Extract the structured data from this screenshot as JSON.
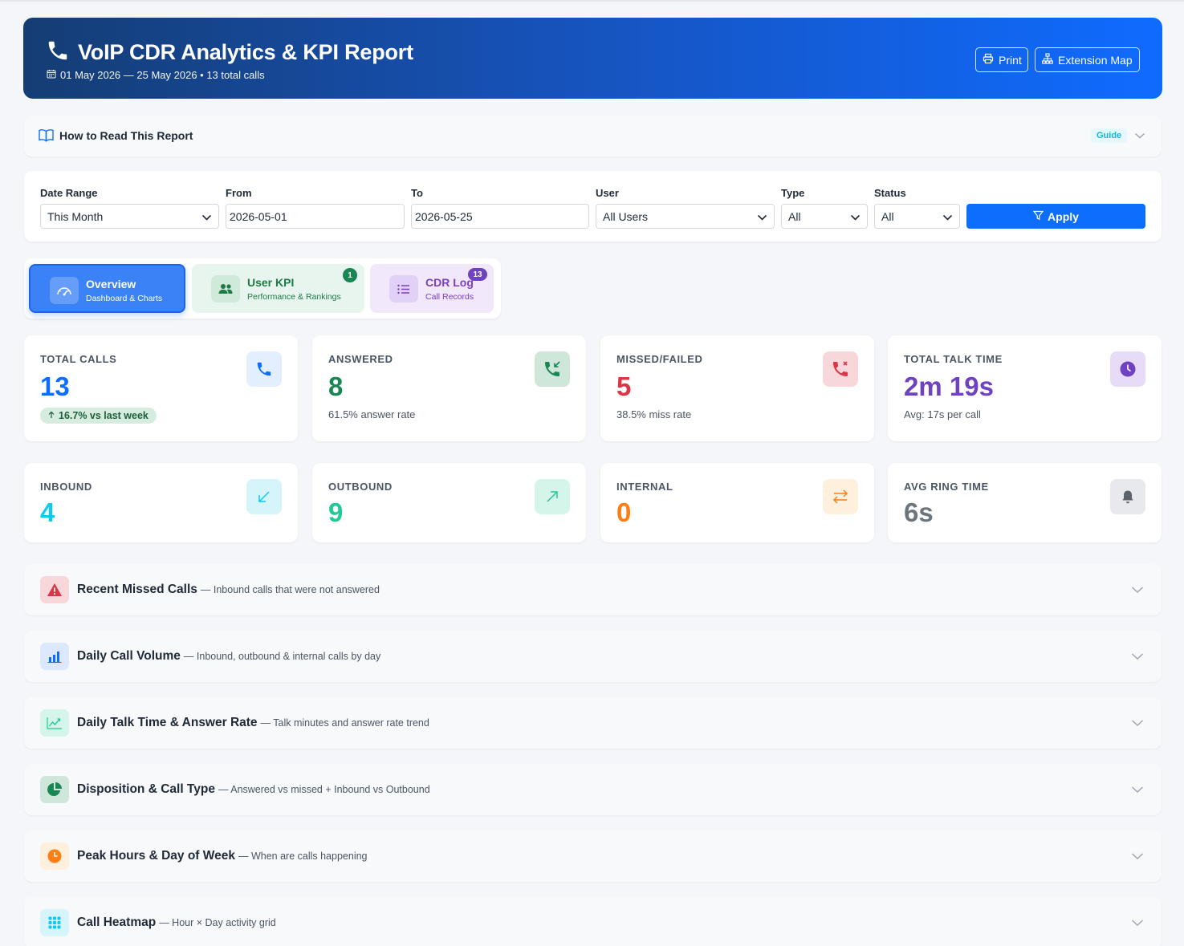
{
  "header": {
    "title": "VoIP CDR Analytics & KPI Report",
    "subtitle": "01 May 2026 — 25 May 2026 • 13 total calls",
    "print_label": "Print",
    "extension_map_label": "Extension Map"
  },
  "guide": {
    "label": "How to Read This Report",
    "badge": "Guide"
  },
  "filters": {
    "date_range": {
      "label": "Date Range",
      "value": "This Month"
    },
    "from": {
      "label": "From",
      "value": "2026-05-01"
    },
    "to": {
      "label": "To",
      "value": "2026-05-25"
    },
    "user": {
      "label": "User",
      "value": "All Users"
    },
    "type": {
      "label": "Type",
      "value": "All"
    },
    "status": {
      "label": "Status",
      "value": "All"
    },
    "apply_label": "Apply"
  },
  "tabs": [
    {
      "title": "Overview",
      "subtitle": "Dashboard & Charts"
    },
    {
      "title": "User KPI",
      "subtitle": "Performance & Rankings",
      "badge": "1"
    },
    {
      "title": "CDR Log",
      "subtitle": "Call Records",
      "badge": "13"
    }
  ],
  "kpis": [
    {
      "label": "TOTAL CALLS",
      "value": "13",
      "trend": "16.7% vs last week",
      "color": "#0d6efd",
      "icon": "phone-icon"
    },
    {
      "label": "ANSWERED",
      "value": "8",
      "sub": "61.5% answer rate",
      "color": "#198754",
      "icon": "phone-incoming-icon"
    },
    {
      "label": "MISSED/FAILED",
      "value": "5",
      "sub": "38.5% miss rate",
      "color": "#dc3545",
      "icon": "phone-missed-icon"
    },
    {
      "label": "TOTAL TALK TIME",
      "value": "2m 19s",
      "sub": "Avg: 17s per call",
      "color": "#6f42c1",
      "icon": "clock-icon"
    },
    {
      "label": "INBOUND",
      "value": "4",
      "color": "#0dcaf0",
      "icon": "arrow-down-left-icon"
    },
    {
      "label": "OUTBOUND",
      "value": "9",
      "color": "#20c997",
      "icon": "arrow-up-right-icon"
    },
    {
      "label": "INTERNAL",
      "value": "0",
      "color": "#fd7e14",
      "icon": "arrows-left-right-icon"
    },
    {
      "label": "AVG RING TIME",
      "value": "6s",
      "color": "#6c757d",
      "icon": "bell-icon"
    }
  ],
  "sections": [
    {
      "title": "Recent Missed Calls",
      "desc": "— Inbound calls that were not answered",
      "icon": "warning-icon"
    },
    {
      "title": "Daily Call Volume",
      "desc": "— Inbound, outbound & internal calls by day",
      "icon": "bar-chart-icon"
    },
    {
      "title": "Daily Talk Time & Answer Rate",
      "desc": "— Talk minutes and answer rate trend",
      "icon": "line-chart-icon"
    },
    {
      "title": "Disposition & Call Type",
      "desc": "— Answered vs missed + Inbound vs Outbound",
      "icon": "pie-chart-icon"
    },
    {
      "title": "Peak Hours & Day of Week",
      "desc": "— When are calls happening",
      "icon": "clock-icon"
    },
    {
      "title": "Call Heatmap",
      "desc": "— Hour × Day activity grid",
      "icon": "grid-icon"
    }
  ]
}
